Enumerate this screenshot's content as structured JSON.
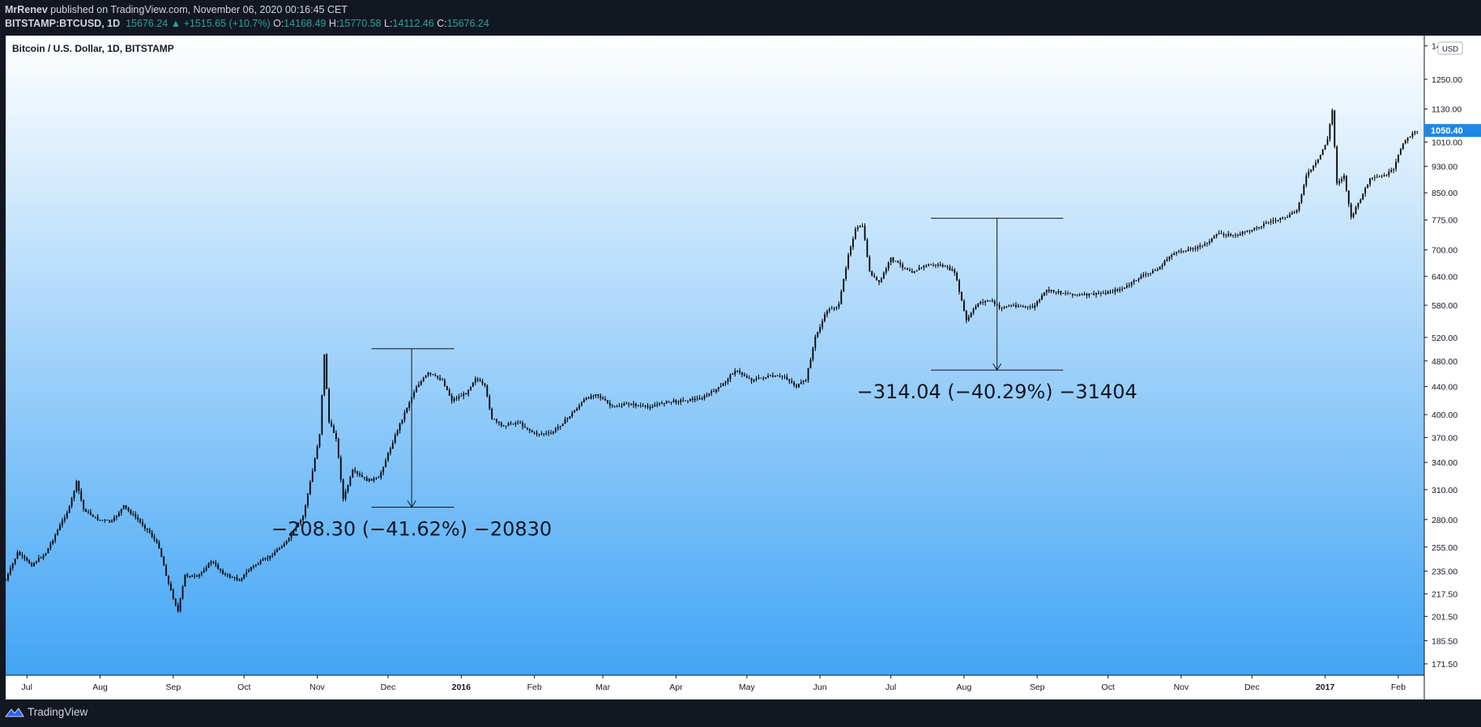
{
  "header": {
    "publisher": "MrRenev",
    "published_text": "published on TradingView.com, November 06, 2020 00:16:45 CET",
    "symbol": "BITSTAMP:BTCUSD, 1D",
    "last": "15676.24",
    "change": "+1515.65 (+10.7%)",
    "open_label": "O:",
    "open": "14168.49",
    "high_label": "H:",
    "high": "15770.58",
    "low_label": "L:",
    "low": "14112.46",
    "close_label": "C:",
    "close": "15676.24"
  },
  "footer": {
    "brand": "TradingView",
    "brand_icon": "tradingview-logo-icon"
  },
  "colors": {
    "background_top": "#ffffff",
    "background_bottom": "#42a5f5",
    "candles": "#000000",
    "price_tag": "#1e88e5",
    "header_values": "#26a69a"
  },
  "chart_data": {
    "type": "candlestick",
    "title": "Bitcoin / U.S. Dollar, 1D, BITSTAMP",
    "currency": "USD",
    "scale": "log",
    "ylim": [
      165,
      1450
    ],
    "xlim": [
      "2015-06-22",
      "2017-02-12"
    ],
    "yticks": [
      "1400.10",
      "1250.00",
      "1130.00",
      "1010.00",
      "930.00",
      "850.00",
      "775.00",
      "700.00",
      "640.00",
      "580.00",
      "520.00",
      "480.00",
      "440.00",
      "400.00",
      "370.00",
      "340.00",
      "310.00",
      "280.00",
      "255.00",
      "235.00",
      "217.50",
      "201.50",
      "185.50",
      "171.50"
    ],
    "xticks": [
      {
        "label": "Jul",
        "date": "2015-07-01",
        "bold": false
      },
      {
        "label": "Aug",
        "date": "2015-08-01",
        "bold": false
      },
      {
        "label": "Sep",
        "date": "2015-09-01",
        "bold": false
      },
      {
        "label": "Oct",
        "date": "2015-10-01",
        "bold": false
      },
      {
        "label": "Nov",
        "date": "2015-11-01",
        "bold": false
      },
      {
        "label": "Dec",
        "date": "2015-12-01",
        "bold": false
      },
      {
        "label": "2016",
        "date": "2016-01-01",
        "bold": true
      },
      {
        "label": "Feb",
        "date": "2016-02-01",
        "bold": false
      },
      {
        "label": "Mar",
        "date": "2016-03-01",
        "bold": false
      },
      {
        "label": "Apr",
        "date": "2016-04-01",
        "bold": false
      },
      {
        "label": "May",
        "date": "2016-05-01",
        "bold": false
      },
      {
        "label": "Jun",
        "date": "2016-06-01",
        "bold": false
      },
      {
        "label": "Jul",
        "date": "2016-07-01",
        "bold": false
      },
      {
        "label": "Aug",
        "date": "2016-08-01",
        "bold": false
      },
      {
        "label": "Sep",
        "date": "2016-09-01",
        "bold": false
      },
      {
        "label": "Oct",
        "date": "2016-10-01",
        "bold": false
      },
      {
        "label": "Nov",
        "date": "2016-11-01",
        "bold": false
      },
      {
        "label": "Dec",
        "date": "2016-12-01",
        "bold": false
      },
      {
        "label": "2017",
        "date": "2017-01-01",
        "bold": true
      },
      {
        "label": "Feb",
        "date": "2017-02-01",
        "bold": false
      }
    ],
    "last_price_label": "1050.40",
    "last_price": 1050.4,
    "series": [
      {
        "date": "2015-06-22",
        "price": 228
      },
      {
        "date": "2015-06-27",
        "price": 250
      },
      {
        "date": "2015-07-03",
        "price": 240
      },
      {
        "date": "2015-07-09",
        "price": 250
      },
      {
        "date": "2015-07-14",
        "price": 270
      },
      {
        "date": "2015-07-19",
        "price": 292
      },
      {
        "date": "2015-07-22",
        "price": 318
      },
      {
        "date": "2015-07-25",
        "price": 290
      },
      {
        "date": "2015-07-31",
        "price": 280
      },
      {
        "date": "2015-08-06",
        "price": 278
      },
      {
        "date": "2015-08-11",
        "price": 293
      },
      {
        "date": "2015-08-17",
        "price": 280
      },
      {
        "date": "2015-08-22",
        "price": 268
      },
      {
        "date": "2015-08-26",
        "price": 255
      },
      {
        "date": "2015-08-30",
        "price": 225
      },
      {
        "date": "2015-09-03",
        "price": 205
      },
      {
        "date": "2015-09-06",
        "price": 232
      },
      {
        "date": "2015-09-11",
        "price": 230
      },
      {
        "date": "2015-09-17",
        "price": 243
      },
      {
        "date": "2015-09-23",
        "price": 232
      },
      {
        "date": "2015-09-29",
        "price": 228
      },
      {
        "date": "2015-10-04",
        "price": 238
      },
      {
        "date": "2015-10-12",
        "price": 247
      },
      {
        "date": "2015-10-20",
        "price": 262
      },
      {
        "date": "2015-10-26",
        "price": 283
      },
      {
        "date": "2015-10-30",
        "price": 330
      },
      {
        "date": "2015-11-02",
        "price": 375
      },
      {
        "date": "2015-11-04",
        "price": 490
      },
      {
        "date": "2015-11-06",
        "price": 390
      },
      {
        "date": "2015-11-09",
        "price": 370
      },
      {
        "date": "2015-11-12",
        "price": 300
      },
      {
        "date": "2015-11-16",
        "price": 330
      },
      {
        "date": "2015-11-22",
        "price": 320
      },
      {
        "date": "2015-11-27",
        "price": 322
      },
      {
        "date": "2015-12-01",
        "price": 350
      },
      {
        "date": "2015-12-05",
        "price": 380
      },
      {
        "date": "2015-12-09",
        "price": 410
      },
      {
        "date": "2015-12-13",
        "price": 440
      },
      {
        "date": "2015-12-18",
        "price": 460
      },
      {
        "date": "2015-12-24",
        "price": 450
      },
      {
        "date": "2015-12-28",
        "price": 420
      },
      {
        "date": "2016-01-03",
        "price": 430
      },
      {
        "date": "2016-01-07",
        "price": 453
      },
      {
        "date": "2016-01-11",
        "price": 440
      },
      {
        "date": "2016-01-14",
        "price": 395
      },
      {
        "date": "2016-01-18",
        "price": 385
      },
      {
        "date": "2016-01-25",
        "price": 390
      },
      {
        "date": "2016-02-01",
        "price": 375
      },
      {
        "date": "2016-02-08",
        "price": 375
      },
      {
        "date": "2016-02-15",
        "price": 395
      },
      {
        "date": "2016-02-22",
        "price": 420
      },
      {
        "date": "2016-02-27",
        "price": 430
      },
      {
        "date": "2016-03-05",
        "price": 410
      },
      {
        "date": "2016-03-12",
        "price": 415
      },
      {
        "date": "2016-03-20",
        "price": 410
      },
      {
        "date": "2016-03-27",
        "price": 417
      },
      {
        "date": "2016-04-05",
        "price": 420
      },
      {
        "date": "2016-04-12",
        "price": 423
      },
      {
        "date": "2016-04-20",
        "price": 440
      },
      {
        "date": "2016-04-26",
        "price": 465
      },
      {
        "date": "2016-05-03",
        "price": 450
      },
      {
        "date": "2016-05-10",
        "price": 455
      },
      {
        "date": "2016-05-17",
        "price": 455
      },
      {
        "date": "2016-05-22",
        "price": 440
      },
      {
        "date": "2016-05-26",
        "price": 450
      },
      {
        "date": "2016-05-30",
        "price": 520
      },
      {
        "date": "2016-06-04",
        "price": 570
      },
      {
        "date": "2016-06-09",
        "price": 580
      },
      {
        "date": "2016-06-13",
        "price": 690
      },
      {
        "date": "2016-06-16",
        "price": 750
      },
      {
        "date": "2016-06-19",
        "price": 760
      },
      {
        "date": "2016-06-22",
        "price": 650
      },
      {
        "date": "2016-06-26",
        "price": 625
      },
      {
        "date": "2016-07-01",
        "price": 680
      },
      {
        "date": "2016-07-05",
        "price": 665
      },
      {
        "date": "2016-07-10",
        "price": 650
      },
      {
        "date": "2016-07-16",
        "price": 665
      },
      {
        "date": "2016-07-22",
        "price": 665
      },
      {
        "date": "2016-07-28",
        "price": 650
      },
      {
        "date": "2016-08-02",
        "price": 550
      },
      {
        "date": "2016-08-07",
        "price": 585
      },
      {
        "date": "2016-08-12",
        "price": 590
      },
      {
        "date": "2016-08-16",
        "price": 575
      },
      {
        "date": "2016-08-22",
        "price": 580
      },
      {
        "date": "2016-08-30",
        "price": 575
      },
      {
        "date": "2016-09-05",
        "price": 610
      },
      {
        "date": "2016-09-12",
        "price": 605
      },
      {
        "date": "2016-09-20",
        "price": 600
      },
      {
        "date": "2016-09-30",
        "price": 605
      },
      {
        "date": "2016-10-08",
        "price": 615
      },
      {
        "date": "2016-10-15",
        "price": 640
      },
      {
        "date": "2016-10-22",
        "price": 655
      },
      {
        "date": "2016-10-28",
        "price": 690
      },
      {
        "date": "2016-11-03",
        "price": 700
      },
      {
        "date": "2016-11-10",
        "price": 710
      },
      {
        "date": "2016-11-17",
        "price": 740
      },
      {
        "date": "2016-11-24",
        "price": 735
      },
      {
        "date": "2016-12-01",
        "price": 750
      },
      {
        "date": "2016-12-08",
        "price": 770
      },
      {
        "date": "2016-12-15",
        "price": 780
      },
      {
        "date": "2016-12-20",
        "price": 800
      },
      {
        "date": "2016-12-24",
        "price": 900
      },
      {
        "date": "2016-12-29",
        "price": 950
      },
      {
        "date": "2017-01-02",
        "price": 1020
      },
      {
        "date": "2017-01-04",
        "price": 1125
      },
      {
        "date": "2017-01-06",
        "price": 880
      },
      {
        "date": "2017-01-09",
        "price": 900
      },
      {
        "date": "2017-01-12",
        "price": 780
      },
      {
        "date": "2017-01-15",
        "price": 820
      },
      {
        "date": "2017-01-20",
        "price": 890
      },
      {
        "date": "2017-01-26",
        "price": 900
      },
      {
        "date": "2017-01-30",
        "price": 920
      },
      {
        "date": "2017-02-03",
        "price": 1010
      },
      {
        "date": "2017-02-09",
        "price": 1050.4
      }
    ],
    "annotations": [
      {
        "text": "−208.30 (−41.62%) −20830",
        "from_date": "2015-11-24",
        "to_date": "2015-12-29",
        "arrow_date": "2015-12-11",
        "top_price": 500.3,
        "bottom_price": 292
      },
      {
        "text": "−314.04 (−40.29%) −31404",
        "from_date": "2016-07-18",
        "to_date": "2016-09-12",
        "arrow_date": "2016-08-15",
        "top_price": 779.4,
        "bottom_price": 465.3
      }
    ]
  }
}
